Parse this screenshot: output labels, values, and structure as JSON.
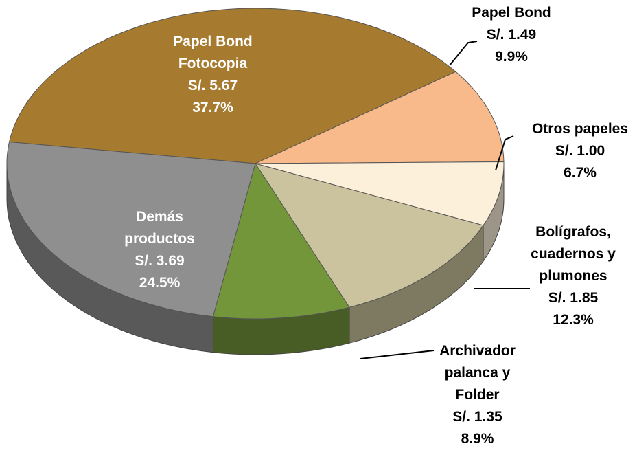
{
  "chart_data": {
    "type": "pie",
    "categories": [
      "Papel Bond Fotocopia",
      "Papel Bond",
      "Otros papeles",
      "Bolígrafos, cuadernos y plumones",
      "Archivador palanca y Folder",
      "Demás productos"
    ],
    "values": [
      37.7,
      9.9,
      6.7,
      12.3,
      8.9,
      24.5
    ],
    "value_labels": [
      "37.7%",
      "9.9%",
      "6.7%",
      "12.3%",
      "8.9%",
      "24.5%"
    ],
    "amounts": [
      5.67,
      1.49,
      1.0,
      1.85,
      1.35,
      3.69
    ],
    "amount_labels": [
      "S/. 5.67",
      "S/. 1.49",
      "S/. 1.00",
      "S/. 1.85",
      "S/. 1.35",
      "S/. 3.69"
    ],
    "colors": [
      "#a67b2f",
      "#f8b98b",
      "#fdf0da",
      "#cbc39d",
      "#74963b",
      "#8f8f8f"
    ]
  }
}
